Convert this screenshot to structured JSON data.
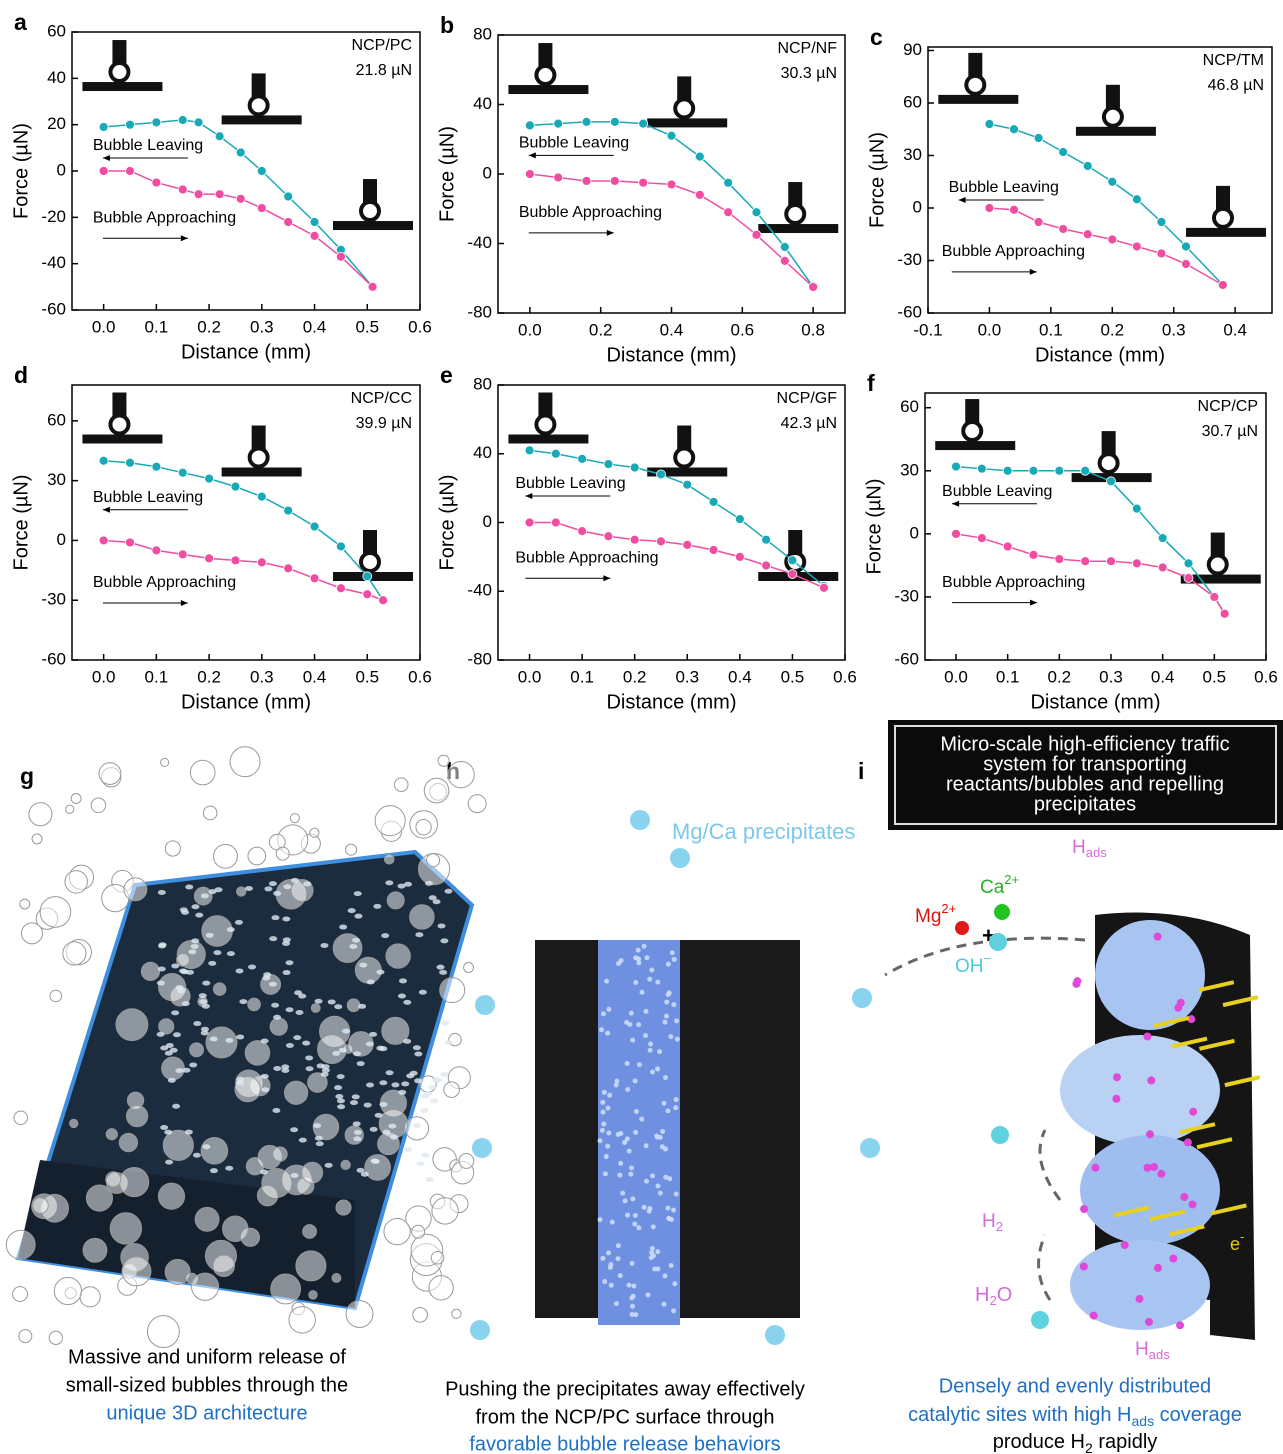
{
  "chart_data": [
    {
      "type": "line",
      "label": "a",
      "sample": "NCP/PC",
      "force": "21.8 µN",
      "xlabel": "Distance (mm)",
      "ylabel": "Force (µN)",
      "xlim": [
        -0.06,
        0.6
      ],
      "xticks": [
        {
          "value": 0,
          "label": "0.0"
        },
        0.1,
        0.2,
        0.3,
        0.4,
        0.5,
        0.6
      ],
      "ylim": [
        -60,
        60
      ],
      "yticks": [
        -60,
        -40,
        -20,
        0,
        20,
        40,
        60
      ],
      "x": [
        0,
        0.05,
        0.1,
        0.15,
        0.18,
        0.22,
        0.26,
        0.3,
        0.35,
        0.4,
        0.45,
        0.51
      ],
      "series": [
        {
          "name": "Bubble Leaving",
          "color": "#17a9b5",
          "values": [
            19,
            20,
            21,
            22,
            21,
            15,
            8,
            0,
            -11,
            -22,
            -34,
            -50
          ]
        },
        {
          "name": "Bubble Approaching",
          "color": "#f04da0",
          "values": [
            0,
            0,
            -5,
            -8,
            -10,
            -10,
            -12,
            -16,
            -22,
            -28,
            -37,
            -50
          ]
        }
      ]
    },
    {
      "type": "line",
      "label": "b",
      "sample": "NCP/NF",
      "force": "30.3 µN",
      "xlabel": "Distance (mm)",
      "ylabel": "Force (µN)",
      "xlim": [
        -0.09,
        0.89
      ],
      "xticks": [
        {
          "value": 0,
          "label": "0.0"
        },
        0.2,
        0.4,
        0.6,
        0.8
      ],
      "ylim": [
        -80,
        80
      ],
      "yticks": [
        -80,
        -40,
        0,
        40,
        80
      ],
      "x": [
        0,
        0.08,
        0.16,
        0.24,
        0.32,
        0.4,
        0.48,
        0.56,
        0.64,
        0.72,
        0.8
      ],
      "series": [
        {
          "name": "Bubble Leaving",
          "color": "#17a9b5",
          "values": [
            28,
            29,
            30,
            30,
            29,
            22,
            10,
            -5,
            -22,
            -42,
            -65
          ]
        },
        {
          "name": "Bubble Approaching",
          "color": "#f04da0",
          "values": [
            0,
            -2,
            -4,
            -4,
            -5,
            -6,
            -12,
            -22,
            -35,
            -50,
            -65
          ]
        }
      ]
    },
    {
      "type": "line",
      "label": "c",
      "sample": "NCP/TM",
      "force": "46.8 µN",
      "xlabel": "Distance (mm)",
      "ylabel": "Force (µN)",
      "xlim": [
        -0.1,
        0.46
      ],
      "xticks": [
        -0.1,
        {
          "value": 0,
          "label": "0.0"
        },
        0.1,
        0.2,
        0.3,
        0.4
      ],
      "ylim": [
        -60,
        92
      ],
      "yticks": [
        -60,
        -30,
        0,
        30,
        60,
        90
      ],
      "x": [
        0,
        0.04,
        0.08,
        0.12,
        0.16,
        0.2,
        0.24,
        0.28,
        0.32,
        0.38
      ],
      "series": [
        {
          "name": "Bubble Leaving",
          "color": "#17a9b5",
          "values": [
            48,
            45,
            40,
            32,
            24,
            15,
            5,
            -8,
            -22,
            -44
          ]
        },
        {
          "name": "Bubble Approaching",
          "color": "#f04da0",
          "values": [
            0,
            -1,
            -8,
            -12,
            -15,
            -18,
            -22,
            -26,
            -32,
            -44
          ]
        }
      ]
    },
    {
      "type": "line",
      "label": "d",
      "sample": "NCP/CC",
      "force": "39.9 µN",
      "xlabel": "Distance (mm)",
      "ylabel": "Force (µN)",
      "xlim": [
        -0.06,
        0.6
      ],
      "xticks": [
        {
          "value": 0,
          "label": "0.0"
        },
        0.1,
        0.2,
        0.3,
        0.4,
        0.5,
        0.6
      ],
      "ylim": [
        -60,
        78
      ],
      "yticks": [
        -60,
        -30,
        0,
        30,
        60
      ],
      "x": [
        0,
        0.05,
        0.1,
        0.15,
        0.2,
        0.25,
        0.3,
        0.35,
        0.4,
        0.45,
        0.5,
        0.53
      ],
      "series": [
        {
          "name": "Bubble Leaving",
          "color": "#17a9b5",
          "values": [
            40,
            39,
            37,
            34,
            31,
            27,
            22,
            15,
            7,
            -3,
            -18,
            -30
          ]
        },
        {
          "name": "Bubble Approaching",
          "color": "#f04da0",
          "values": [
            0,
            -1,
            -5,
            -7,
            -9,
            -10,
            -11,
            -14,
            -19,
            -24,
            -27,
            -30
          ]
        }
      ]
    },
    {
      "type": "line",
      "label": "e",
      "sample": "NCP/GF",
      "force": "42.3 µN",
      "xlabel": "Distance (mm)",
      "ylabel": "Force (µN)",
      "xlim": [
        -0.06,
        0.6
      ],
      "xticks": [
        {
          "value": 0,
          "label": "0.0"
        },
        0.1,
        0.2,
        0.3,
        0.4,
        0.5,
        0.6
      ],
      "ylim": [
        -80,
        80
      ],
      "yticks": [
        -80,
        -40,
        0,
        40,
        80
      ],
      "x": [
        0,
        0.05,
        0.1,
        0.15,
        0.2,
        0.25,
        0.3,
        0.35,
        0.4,
        0.45,
        0.5,
        0.56
      ],
      "series": [
        {
          "name": "Bubble Leaving",
          "color": "#17a9b5",
          "values": [
            42,
            40,
            37,
            34,
            32,
            28,
            22,
            12,
            2,
            -10,
            -22,
            -37
          ]
        },
        {
          "name": "Bubble Approaching",
          "color": "#f04da0",
          "values": [
            0,
            0,
            -5,
            -8,
            -10,
            -11,
            -13,
            -16,
            -20,
            -25,
            -30,
            -38
          ]
        }
      ]
    },
    {
      "type": "line",
      "label": "f",
      "sample": "NCP/CP",
      "force": "30.7 µN",
      "xlabel": "Distance (mm)",
      "ylabel": "Force (µN)",
      "xlim": [
        -0.06,
        0.6
      ],
      "xticks": [
        {
          "value": 0,
          "label": "0.0"
        },
        0.1,
        0.2,
        0.3,
        0.4,
        0.5,
        0.6
      ],
      "ylim": [
        -60,
        67
      ],
      "yticks": [
        -60,
        -30,
        0,
        30,
        60
      ],
      "x": [
        0,
        0.05,
        0.1,
        0.15,
        0.2,
        0.25,
        0.3,
        0.35,
        0.4,
        0.45,
        0.5,
        0.52
      ],
      "series": [
        {
          "name": "Bubble Leaving",
          "color": "#17a9b5",
          "values": [
            32,
            31,
            30,
            30,
            30,
            30,
            25,
            12,
            -2,
            -14,
            -30,
            -38
          ]
        },
        {
          "name": "Bubble Approaching",
          "color": "#f04da0",
          "values": [
            0,
            -2,
            -6,
            -10,
            -12,
            -13,
            -13,
            -14,
            -16,
            -21,
            -30,
            -38
          ]
        }
      ]
    }
  ],
  "panels": {
    "g": {
      "label": "g",
      "caption": [
        "Massive and uniform release of",
        "small-sized bubbles through the",
        "unique 3D architecture"
      ]
    },
    "h": {
      "label": "h",
      "annotation": "Mg/Ca precipitates",
      "caption": [
        "Pushing the precipitates away effectively",
        "from the NCP/PC surface through",
        "favorable bubble release behaviors"
      ]
    },
    "i": {
      "label": "i",
      "box": [
        "Micro-scale high-efficiency traffic",
        "system for transporting",
        "reactants/bubbles and repelling",
        "precipitates"
      ],
      "species": {
        "h_ads_top": [
          "H",
          "ads"
        ],
        "ca": [
          "Ca",
          "2+"
        ],
        "mg": [
          "Mg",
          "2+"
        ],
        "plus": "+",
        "oh": [
          "OH",
          "−"
        ],
        "h2": [
          "H",
          "2"
        ],
        "h2o": [
          "H",
          "2",
          "O"
        ],
        "e": [
          "e",
          "-"
        ],
        "h_ads_bottom": [
          "H",
          "ads"
        ]
      },
      "caption": [
        "Densely and evenly distributed",
        [
          "catalytic sites with high H",
          "ads",
          " coverage"
        ],
        [
          "produce H",
          "2",
          " rapidly"
        ]
      ]
    }
  }
}
